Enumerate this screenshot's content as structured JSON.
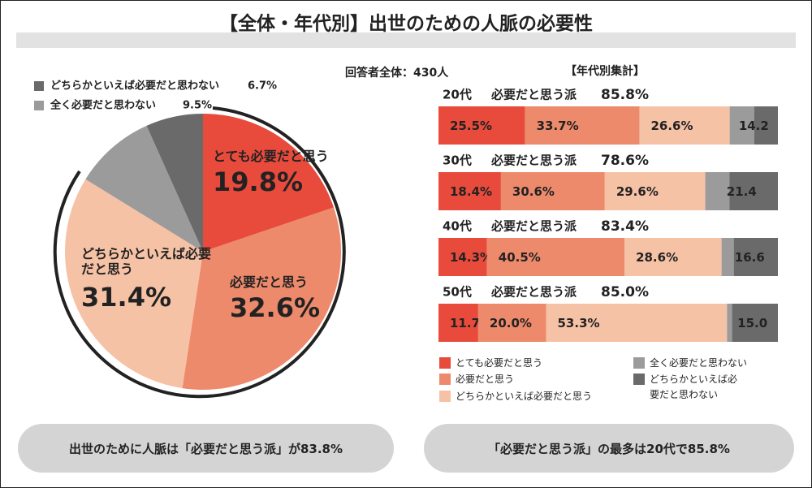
{
  "title": "【全体・年代別】出世のための人脈の必要性",
  "respondents": "回答者全体：430人",
  "breakdown_heading": "【年代別集計】",
  "chart_data": [
    {
      "type": "pie",
      "categories": [
        "とても必要だと思う",
        "必要だと思う",
        "どちらかといえば必要だと思う",
        "全く必要だと思わない",
        "どちらかといえば必要だと思わない"
      ],
      "values": [
        19.8,
        32.6,
        31.4,
        9.5,
        6.7
      ],
      "value_labels": [
        "19.8%",
        "32.6%",
        "31.4%",
        "9.5%",
        "6.7%"
      ],
      "colors": [
        "#e84b3c",
        "#ee8a6c",
        "#f6c2a6",
        "#9b9b9b",
        "#6a6a6a"
      ]
    },
    {
      "type": "stacked-bar-horizontal",
      "categories": [
        "20代",
        "30代",
        "40代",
        "50代"
      ],
      "group_label": "必要だと思う派",
      "group_values": [
        85.8,
        78.6,
        83.4,
        85.0
      ],
      "group_value_labels": [
        "85.8%",
        "78.6%",
        "83.4%",
        "85.0%"
      ],
      "rest_values": [
        14.2,
        21.4,
        16.6,
        15.0
      ],
      "rest_value_labels": [
        "14.2",
        "21.4",
        "16.6",
        "15.0"
      ],
      "xlim": [
        0,
        100
      ],
      "series": [
        {
          "name": "とても必要だと思う",
          "color": "#e84b3c",
          "values": [
            25.5,
            18.4,
            14.3,
            11.7
          ],
          "value_labels": [
            "25.5%",
            "18.4%",
            "14.3%",
            "11.7%"
          ]
        },
        {
          "name": "必要だと思う",
          "color": "#ee8a6c",
          "values": [
            33.7,
            30.6,
            40.5,
            20.0
          ],
          "value_labels": [
            "33.7%",
            "30.6%",
            "40.5%",
            "20.0%"
          ]
        },
        {
          "name": "どちらかといえば必要だと思う",
          "color": "#f6c2a6",
          "values": [
            26.6,
            29.6,
            28.6,
            53.3
          ],
          "value_labels": [
            "26.6%",
            "29.6%",
            "28.6%",
            "53.3%"
          ]
        },
        {
          "name": "全く必要だと思わない",
          "color": "#9b9b9b",
          "values": [
            7.2,
            7.1,
            3.6,
            1.5
          ]
        },
        {
          "name": "どちらかといえば必要だと思わない",
          "color": "#6a6a6a",
          "values": [
            7.0,
            14.3,
            13.0,
            13.5
          ]
        }
      ]
    }
  ],
  "summaries": [
    "出世のために人脈は「必要だと思う派」が83.8%",
    "「必要だと思う派」の最多は20代で85.8%"
  ]
}
